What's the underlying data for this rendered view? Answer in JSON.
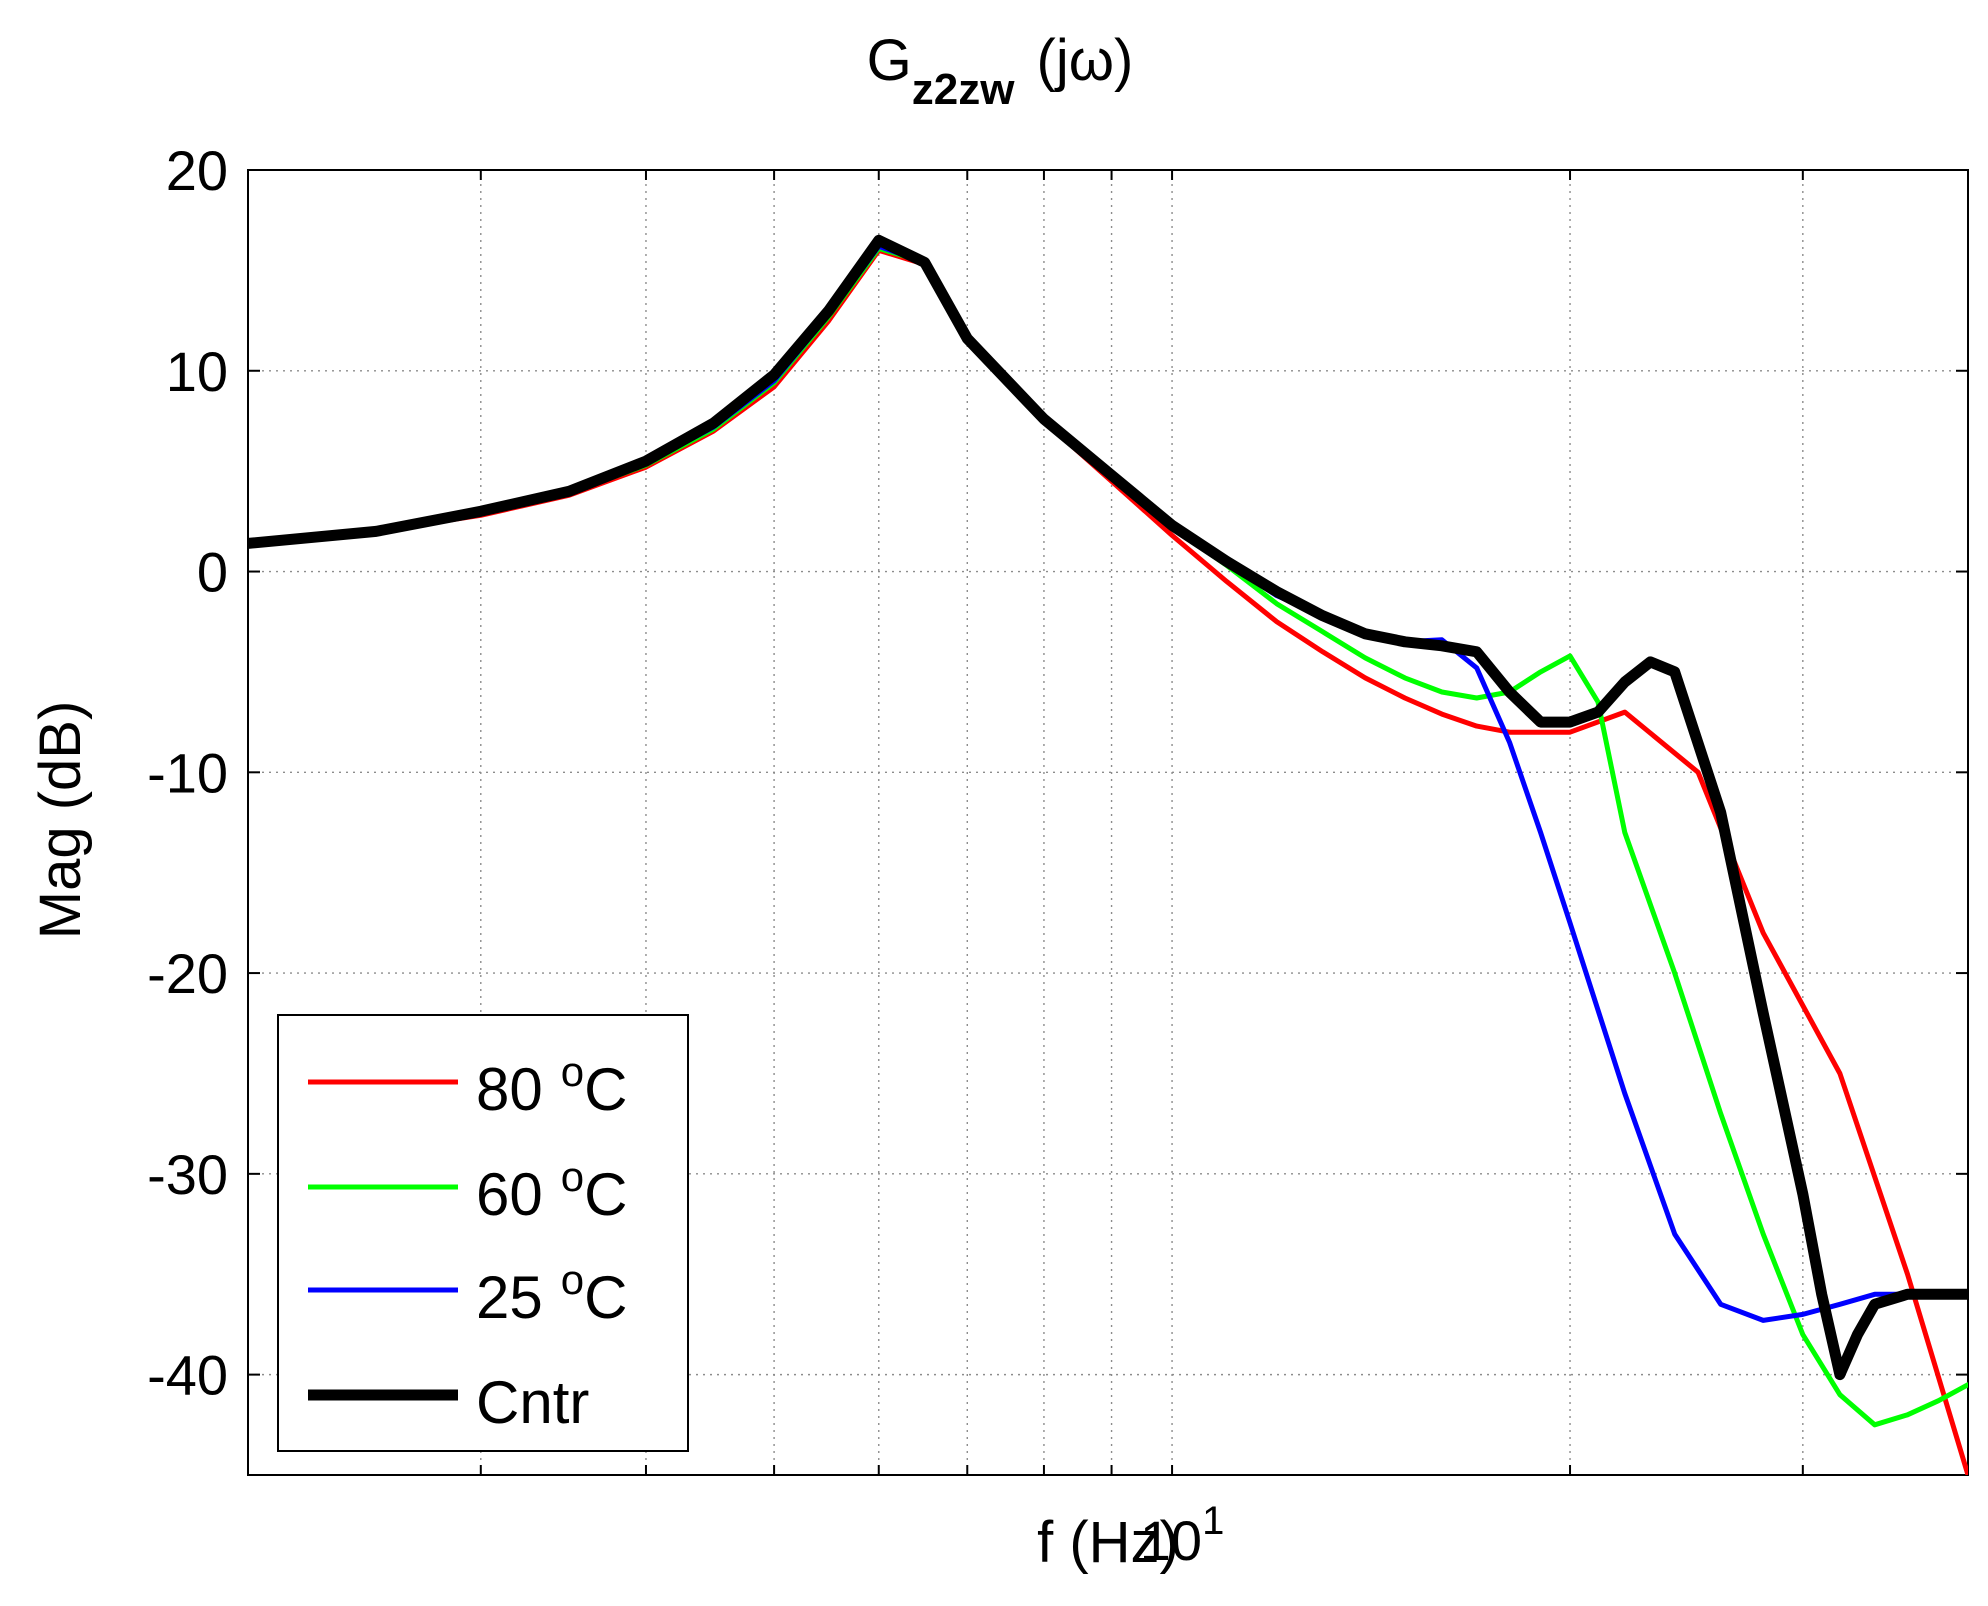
{
  "chart_data": {
    "type": "line",
    "title": "G",
    "title_subscript": "z2zw",
    "title_suffix": "(jω)",
    "xlabel": "f (Hz)",
    "ylabel": "Mag (dB)",
    "xscale": "log",
    "xlim": [
      2,
      40
    ],
    "ylim": [
      -45,
      20
    ],
    "grid": true,
    "legend_position": "bottom-left",
    "x_tick_base": "10",
    "x_tick_exponent": "1",
    "x_tick_values": [
      10
    ],
    "y_ticks": [
      20,
      10,
      0,
      -10,
      -20,
      -30,
      -40
    ],
    "y_tick_labels": [
      "20",
      "10",
      "0",
      "-10",
      "-20",
      "-30",
      "-40"
    ],
    "series": [
      {
        "name": "80 °C",
        "label_number": "80",
        "label_degree": "o",
        "label_unit": "C",
        "color": "#ff0000",
        "width": 5,
        "x": [
          2.0,
          2.5,
          3.0,
          3.5,
          4.0,
          4.5,
          5.0,
          5.5,
          6.0,
          6.5,
          7.0,
          8.0,
          9.0,
          10.0,
          11.0,
          12.0,
          13.0,
          14.0,
          15.0,
          16.0,
          17.0,
          18.0,
          20.0,
          22.0,
          25.0,
          28.0,
          32.0,
          36.0,
          40.0
        ],
        "y": [
          1.4,
          2.0,
          2.8,
          3.8,
          5.2,
          7.0,
          9.2,
          12.5,
          16.0,
          15.3,
          11.5,
          7.5,
          4.5,
          1.8,
          -0.5,
          -2.5,
          -4.0,
          -5.3,
          -6.3,
          -7.1,
          -7.7,
          -8.0,
          -8.0,
          -7.0,
          -10.0,
          -18.0,
          -25.0,
          -35.0,
          -45.0
        ]
      },
      {
        "name": "60 °C",
        "label_number": "60",
        "label_degree": "o",
        "label_unit": "C",
        "color": "#00ff00",
        "width": 5,
        "x": [
          2.0,
          2.5,
          3.0,
          3.5,
          4.0,
          4.5,
          5.0,
          5.5,
          6.0,
          6.5,
          7.0,
          8.0,
          9.0,
          10.0,
          11.0,
          12.0,
          13.0,
          14.0,
          15.0,
          16.0,
          17.0,
          18.0,
          19.0,
          20.0,
          21.0,
          22.0,
          24.0,
          26.0,
          28.0,
          30.0,
          32.0,
          34.0,
          36.0,
          38.0,
          40.0
        ],
        "y": [
          1.4,
          2.0,
          2.9,
          3.9,
          5.3,
          7.1,
          9.4,
          12.7,
          16.1,
          15.4,
          11.6,
          7.6,
          4.8,
          2.2,
          0.3,
          -1.6,
          -3.0,
          -4.3,
          -5.3,
          -6.0,
          -6.3,
          -6.0,
          -5.0,
          -4.2,
          -6.5,
          -13.0,
          -20.0,
          -27.0,
          -33.0,
          -38.0,
          -41.0,
          -42.5,
          -42.0,
          -41.3,
          -40.5
        ]
      },
      {
        "name": "25 °C",
        "label_number": "25",
        "label_degree": "o",
        "label_unit": "C",
        "color": "#0000ff",
        "width": 5,
        "x": [
          2.0,
          2.5,
          3.0,
          3.5,
          4.0,
          4.5,
          5.0,
          5.5,
          6.0,
          6.5,
          7.0,
          8.0,
          9.0,
          10.0,
          11.0,
          12.0,
          13.0,
          14.0,
          15.0,
          16.0,
          17.0,
          18.0,
          19.0,
          20.0,
          22.0,
          24.0,
          26.0,
          28.0,
          30.0,
          32.0,
          34.0,
          36.0,
          38.0,
          40.0
        ],
        "y": [
          1.4,
          2.0,
          2.9,
          3.9,
          5.4,
          7.2,
          9.5,
          12.8,
          16.2,
          15.4,
          11.6,
          7.6,
          4.8,
          2.2,
          0.4,
          -1.2,
          -2.2,
          -3.0,
          -3.5,
          -3.4,
          -4.8,
          -8.5,
          -13.0,
          -17.5,
          -26.0,
          -33.0,
          -36.5,
          -37.3,
          -37.0,
          -36.5,
          -36.0,
          -36.0,
          -36.0,
          -36.0
        ]
      },
      {
        "name": "Cntr",
        "label_number": "Cntr",
        "label_degree": "",
        "label_unit": "",
        "color": "#000000",
        "width": 11,
        "x": [
          2.0,
          2.5,
          3.0,
          3.5,
          4.0,
          4.5,
          5.0,
          5.5,
          6.0,
          6.5,
          7.0,
          8.0,
          9.0,
          10.0,
          11.0,
          12.0,
          13.0,
          14.0,
          15.0,
          16.0,
          17.0,
          18.0,
          19.0,
          20.0,
          21.0,
          22.0,
          23.0,
          24.0,
          26.0,
          28.0,
          30.0,
          31.0,
          32.0,
          33.0,
          34.0,
          36.0,
          38.0,
          40.0
        ],
        "y": [
          1.4,
          2.0,
          3.0,
          4.0,
          5.5,
          7.4,
          9.8,
          13.0,
          16.5,
          15.4,
          11.6,
          7.6,
          4.8,
          2.3,
          0.5,
          -1.0,
          -2.2,
          -3.1,
          -3.5,
          -3.7,
          -4.0,
          -6.0,
          -7.5,
          -7.5,
          -7.0,
          -5.5,
          -4.5,
          -5.0,
          -12.0,
          -22.0,
          -31.0,
          -36.0,
          -40.0,
          -38.0,
          -36.5,
          -36.0,
          -36.0,
          -36.0
        ]
      }
    ]
  }
}
